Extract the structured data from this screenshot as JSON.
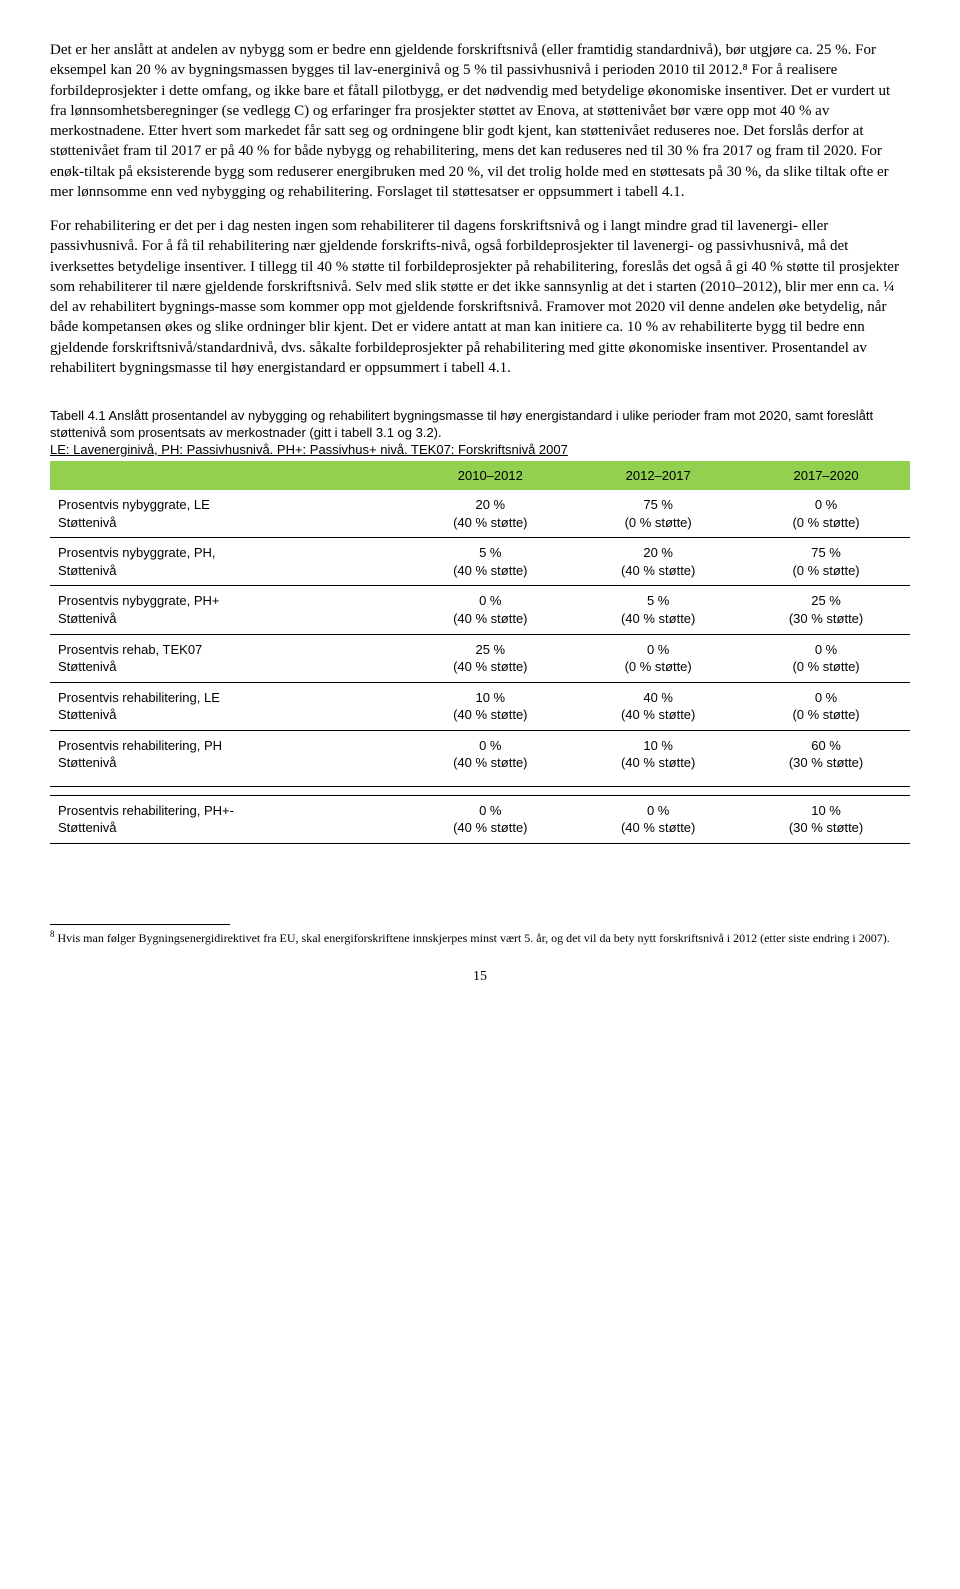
{
  "paragraphs": {
    "p1": "Det er her anslått at andelen av nybygg som er bedre enn gjeldende forskriftsnivå (eller framtidig standardnivå), bør utgjøre ca. 25 %. For eksempel kan 20 % av bygningsmassen bygges til lav-energinivå og 5 % til passivhusnivå i perioden 2010 til 2012.⁸ For å realisere forbildeprosjekter i dette omfang, og ikke bare et fåtall pilotbygg, er det nødvendig med betydelige økonomiske insentiver. Det er vurdert ut fra lønnsomhetsberegninger (se vedlegg C) og erfaringer fra prosjekter støttet av Enova, at støttenivået bør være opp mot 40 % av merkostnadene. Etter hvert som markedet får satt seg og ordningene blir godt kjent, kan støttenivået reduseres noe. Det forslås derfor at støttenivået fram til 2017 er på 40 % for både nybygg og rehabilitering, mens det kan reduseres ned til 30 % fra 2017 og fram til 2020. For enøk-tiltak på eksisterende bygg som reduserer energibruken med 20 %, vil det trolig holde med en støttesats på 30 %, da slike tiltak ofte er mer lønnsomme enn ved nybygging og rehabilitering. Forslaget til støttesatser er oppsummert i tabell 4.1.",
    "p2": "For rehabilitering er det per i dag nesten ingen som rehabiliterer til dagens forskriftsnivå og i langt mindre grad til lavenergi- eller passivhusnivå. For å få til rehabilitering nær gjeldende forskrifts-nivå, også forbildeprosjekter til lavenergi- og passivhusnivå, må det iverksettes betydelige insentiver. I tillegg til 40 % støtte til forbildeprosjekter på rehabilitering, foreslås det også å gi 40 % støtte til prosjekter som rehabiliterer til nære gjeldende forskriftsnivå. Selv med slik støtte er det ikke sannsynlig at det i starten (2010–2012), blir mer enn ca. ¼ del av rehabilitert bygnings-masse som kommer opp mot gjeldende forskriftsnivå. Framover mot 2020 vil denne andelen øke betydelig, når både kompetansen økes og slike ordninger blir kjent. Det er videre antatt at man kan initiere ca. 10 % av rehabiliterte bygg til bedre enn gjeldende forskriftsnivå/standardnivå, dvs. såkalte forbildeprosjekter på rehabilitering med gitte økonomiske insentiver. Prosentandel av rehabilitert bygningsmasse til høy energistandard er oppsummert i tabell 4.1."
  },
  "caption": {
    "main": "Tabell 4.1 Anslått prosentandel av nybygging og rehabilitert bygningsmasse til høy energistandard i ulike perioder fram mot 2020, samt foreslått støttenivå som prosentsats av merkostnader (gitt i tabell 3.1 og 3.2).",
    "line2": "LE: Lavenerginivå, PH: Passivhusnivå. PH+: Passivhus+ nivå. TEK07: Forskriftsnivå 2007"
  },
  "table": {
    "headers": [
      "",
      "2010–2012",
      "2012–2017",
      "2017–2020"
    ],
    "rows": [
      {
        "label": "Prosentvis nybyggrate, LE\nStøttenivå",
        "c1": "20 %\n(40 % støtte)",
        "c2": "75 %\n(0 % støtte)",
        "c3": "0 %\n(0 % støtte)"
      },
      {
        "label": "Prosentvis nybyggrate, PH,\nStøttenivå",
        "c1": "5 %\n(40 % støtte)",
        "c2": "20 %\n(40 % støtte)",
        "c3": "75 %\n(0 % støtte)"
      },
      {
        "label": "Prosentvis nybyggrate, PH+\nStøttenivå",
        "c1": "0 %\n(40 % støtte)",
        "c2": "5 %\n(40 % støtte)",
        "c3": "25 %\n(30 % støtte)"
      },
      {
        "label": "Prosentvis rehab, TEK07\nStøttenivå",
        "c1": "25 %\n(40 % støtte)",
        "c2": "0 %\n(0 % støtte)",
        "c3": "0 %\n(0 % støtte)"
      },
      {
        "label": "Prosentvis rehabilitering, LE\nStøttenivå",
        "c1": "10 %\n(40 % støtte)",
        "c2": "40 %\n(40 % støtte)",
        "c3": "0 %\n(0 % støtte)"
      },
      {
        "label": "Prosentvis rehabilitering, PH\nStøttenivå",
        "c1": "0 %\n(40 % støtte)",
        "c2": "10 %\n(40 % støtte)",
        "c3": "60 %\n(30 % støtte)"
      },
      {
        "label": "Prosentvis rehabilitering, PH+-\nStøttenivå",
        "c1": "0 %\n(40 % støtte)",
        "c2": "0 %\n(40 % støtte)",
        "c3": "10 %\n(30 % støtte)"
      }
    ]
  },
  "footnote": {
    "marker": "8",
    "text": " Hvis man følger Bygningsenergidirektivet fra EU, skal energiforskriftene innskjerpes minst vært 5. år, og det vil da bety nytt forskriftsnivå i 2012 (etter siste endring i 2007)."
  },
  "page_number": "15"
}
